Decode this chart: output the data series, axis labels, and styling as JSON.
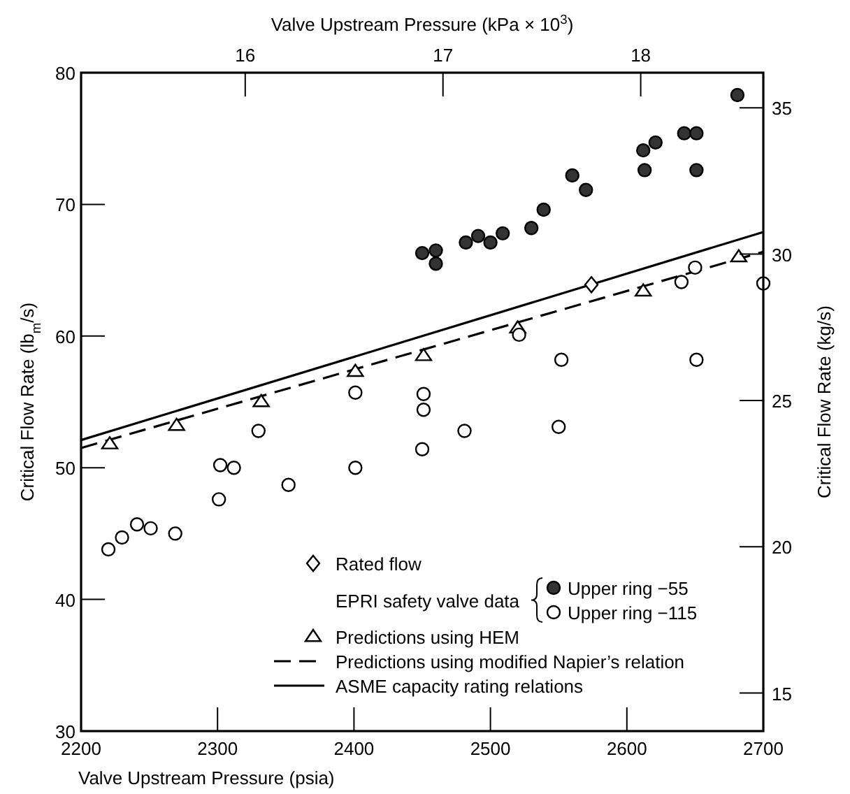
{
  "chart_data": {
    "type": "scatter",
    "xlabel": "Valve Upstream Pressure (psia)",
    "x2label": "Valve Upstream Pressure (kPa × 10$^{3}$)",
    "ylabel": "Critical Flow Rate (lb$_{m}$/s)",
    "y2label": "Critical Flow Rate (kg/s)",
    "xlim": [
      2200,
      2700
    ],
    "xticks": [
      2200,
      2300,
      2400,
      2500,
      2600,
      2700
    ],
    "ylim": [
      30,
      80
    ],
    "yticks": [
      30,
      40,
      50,
      60,
      70,
      80
    ],
    "x2lim": [
      15.17,
      18.62
    ],
    "x2ticks": [
      16,
      17,
      18
    ],
    "y2lim": [
      13.7,
      36.2
    ],
    "y2ticks": [
      15,
      20,
      25,
      30,
      35
    ],
    "legend": "bottom",
    "annotations": [
      "EPRI safety valve data"
    ],
    "series": [
      {
        "name": "Rated flow",
        "marker": "diamond",
        "color": "#ffffff",
        "x": [
          2574
        ],
        "values": [
          63.9
        ]
      },
      {
        "name": "Upper ring −55",
        "marker": "circle",
        "color": "#333333",
        "x": [
          2450,
          2460,
          2460,
          2482,
          2491,
          2500,
          2509,
          2530,
          2539,
          2560,
          2570,
          2612,
          2621,
          2613,
          2642,
          2651,
          2651,
          2681
        ],
        "values": [
          66.3,
          66.5,
          65.5,
          67.1,
          67.6,
          67.1,
          67.8,
          68.2,
          69.6,
          72.2,
          71.1,
          74.1,
          74.7,
          72.6,
          75.4,
          75.4,
          72.6,
          78.3
        ]
      },
      {
        "name": "Upper ring −115",
        "marker": "circle",
        "color": "#ffffff",
        "x": [
          2220,
          2230,
          2241,
          2251,
          2269,
          2301,
          2302,
          2312,
          2330,
          2352,
          2401,
          2401,
          2451,
          2451,
          2450,
          2481,
          2521,
          2550,
          2552,
          2640,
          2650,
          2651,
          2700
        ],
        "values": [
          43.8,
          44.7,
          45.7,
          45.4,
          45.0,
          47.6,
          50.2,
          50.0,
          52.8,
          48.7,
          55.7,
          50.0,
          55.6,
          54.4,
          51.4,
          52.8,
          60.1,
          53.1,
          58.2,
          64.1,
          65.2,
          58.2,
          64.0
        ]
      },
      {
        "name": "Predictions using HEM",
        "marker": "triangle",
        "color": "#ffffff",
        "x": [
          2221,
          2270,
          2332,
          2401,
          2451,
          2520,
          2612,
          2682
        ],
        "values": [
          51.8,
          53.2,
          55.0,
          57.3,
          58.5,
          60.6,
          63.4,
          66.0
        ]
      },
      {
        "name": "Predictions using modified Napier’s relation",
        "type": "line",
        "line_style": "dashed",
        "color": "#000000",
        "x": [
          2200,
          2700
        ],
        "values": [
          51.5,
          66.4
        ]
      },
      {
        "name": "ASME capacity rating relations",
        "type": "line",
        "line_style": "solid",
        "color": "#000000",
        "x": [
          2200,
          2700
        ],
        "values": [
          52.1,
          67.9
        ]
      }
    ]
  }
}
